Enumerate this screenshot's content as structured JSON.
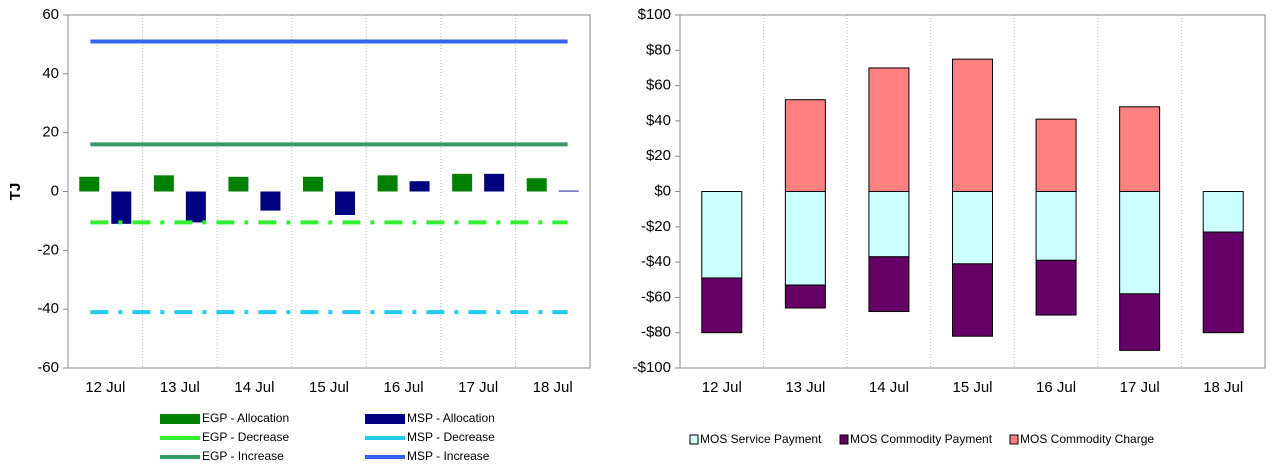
{
  "chart_data": [
    {
      "type": "bar-line",
      "y_label": "TJ",
      "categories": [
        "12 Jul",
        "13 Jul",
        "14 Jul",
        "15 Jul",
        "16 Jul",
        "17 Jul",
        "18 Jul"
      ],
      "ylim": [
        -60,
        60
      ],
      "yticks": [
        -60,
        -40,
        -20,
        0,
        20,
        40,
        60
      ],
      "xgrid": true,
      "series": [
        {
          "name": "EGP - Allocation",
          "kind": "bar",
          "color": "#008000",
          "values": [
            5,
            5.5,
            5,
            5,
            5.5,
            6,
            4.5
          ]
        },
        {
          "name": "MSP - Allocation",
          "kind": "bar",
          "color": "#000080",
          "values": [
            -11,
            -10.5,
            -6.5,
            -8,
            3.5,
            6,
            0.3
          ]
        },
        {
          "name": "EGP - Decrease",
          "kind": "line",
          "dash": "dashdot",
          "color": "#33ee33",
          "values": [
            -10.5,
            -10.5,
            -10.5,
            -10.5,
            -10.5,
            -10.5,
            -10.5
          ]
        },
        {
          "name": "MSP - Decrease",
          "kind": "line",
          "dash": "dashdot",
          "color": "#22ccee",
          "values": [
            -41,
            -41,
            -41,
            -41,
            -41,
            -41,
            -41
          ]
        },
        {
          "name": "EGP - Increase",
          "kind": "line",
          "color": "#339966",
          "values": [
            16,
            16,
            16,
            16,
            16,
            16,
            16
          ]
        },
        {
          "name": "MSP - Increase",
          "kind": "line",
          "color": "#3366ee",
          "values": [
            51,
            51,
            51,
            51,
            51,
            51,
            51
          ]
        }
      ]
    },
    {
      "type": "stacked-bar",
      "categories": [
        "12 Jul",
        "13 Jul",
        "14 Jul",
        "15 Jul",
        "16 Jul",
        "17 Jul",
        "18 Jul"
      ],
      "ylim": [
        -100,
        100
      ],
      "xgrid": true,
      "yticks": [
        {
          "value": -100,
          "label": "-$100"
        },
        {
          "value": -80,
          "label": "-$80"
        },
        {
          "value": -60,
          "label": "-$60"
        },
        {
          "value": -40,
          "label": "-$40"
        },
        {
          "value": -20,
          "label": "-$20"
        },
        {
          "value": 0,
          "label": "$0"
        },
        {
          "value": 20,
          "label": "$20"
        },
        {
          "value": 40,
          "label": "$40"
        },
        {
          "value": 60,
          "label": "$60"
        },
        {
          "value": 80,
          "label": "$80"
        },
        {
          "value": 100,
          "label": "$100"
        }
      ],
      "series": [
        {
          "name": "MOS Service Payment",
          "color": "#ccffff",
          "values": [
            -49,
            -53,
            -37,
            -41,
            -39,
            -58,
            -23
          ]
        },
        {
          "name": "MOS Commodity Payment",
          "color": "#660066",
          "values": [
            -31,
            -13,
            -31,
            -41,
            -31,
            -32,
            -57
          ]
        },
        {
          "name": "MOS Commodity Charge",
          "color": "#ff8080",
          "values": [
            null,
            52,
            70,
            75,
            41,
            48,
            null
          ]
        }
      ]
    }
  ]
}
